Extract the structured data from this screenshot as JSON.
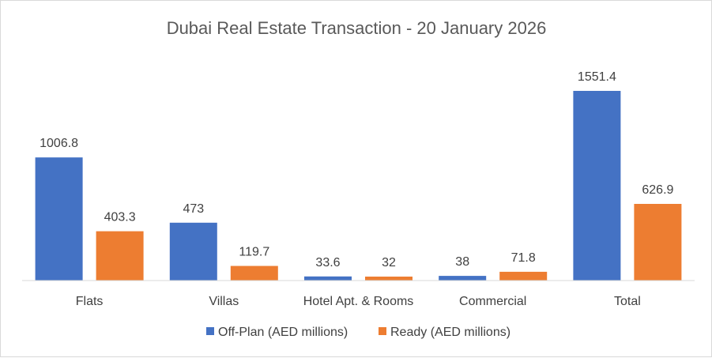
{
  "chart_data": {
    "type": "bar",
    "title": "Dubai Real Estate Transaction - 20 January 2026",
    "categories": [
      "Flats",
      "Villas",
      "Hotel Apt. & Rooms",
      "Commercial",
      "Total"
    ],
    "series": [
      {
        "name": "Off-Plan (AED millions)",
        "values": [
          1006.8,
          473,
          33.6,
          38,
          1551.4
        ],
        "color": "#4472c4"
      },
      {
        "name": "Ready (AED millions)",
        "values": [
          403.3,
          119.7,
          32,
          71.8,
          626.9
        ],
        "color": "#ed7d31"
      }
    ],
    "value_labels": [
      [
        "1006.8",
        "473",
        "33.6",
        "38",
        "1551.4"
      ],
      [
        "403.3",
        "119.7",
        "32",
        "71.8",
        "626.9"
      ]
    ],
    "ylim": [
      0,
      1551.4
    ],
    "grid": false,
    "legend_position": "bottom",
    "axis_color": "#d9d9d9"
  }
}
